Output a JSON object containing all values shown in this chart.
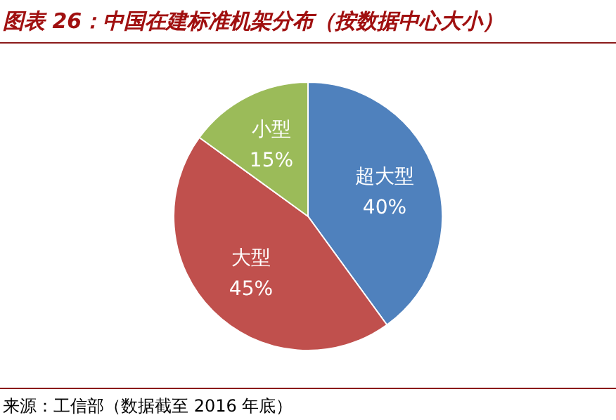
{
  "chart_data": {
    "type": "pie",
    "title": "图表 26：中国在建标准机架分布（按数据中心大小）",
    "categories": [
      "超大型",
      "大型",
      "小型"
    ],
    "values": [
      40,
      45,
      15
    ],
    "colors": [
      "#4f81bd",
      "#c0504d",
      "#9bbb59"
    ],
    "value_labels": [
      "40%",
      "45%",
      "15%"
    ],
    "legend": false,
    "annotations": [
      "来源：工信部（数据截至 2016 年底）"
    ]
  }
}
